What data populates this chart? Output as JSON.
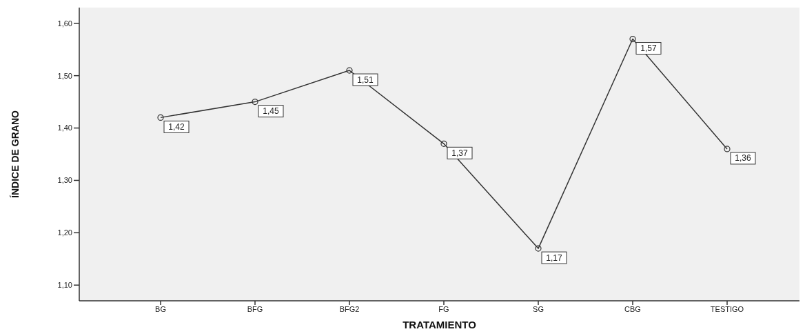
{
  "chart_data": {
    "type": "line",
    "xlabel": "TRATAMIENTO",
    "ylabel": "ÍNDICE DE GRANO",
    "categories": [
      "BG",
      "BFG",
      "BFG2",
      "FG",
      "SG",
      "CBG",
      "TESTIGO"
    ],
    "series": [
      {
        "color": "#333333",
        "values": [
          1.42,
          1.45,
          1.51,
          1.37,
          1.17,
          1.57,
          1.36
        ],
        "value_labels": [
          "1,42",
          "1,45",
          "1,51",
          "1,37",
          "1,17",
          "1,57",
          "1,36"
        ]
      }
    ],
    "ylim": [
      1.07,
      1.63
    ],
    "yticks": [
      {
        "value": 1.1,
        "label": "1,10"
      },
      {
        "value": 1.2,
        "label": "1,20"
      },
      {
        "value": 1.3,
        "label": "1,30"
      },
      {
        "value": 1.4,
        "label": "1,40"
      },
      {
        "value": 1.5,
        "label": "1,50"
      },
      {
        "value": 1.6,
        "label": "1,60"
      }
    ],
    "grid": false,
    "marker": "circle",
    "line_style": "solid",
    "legend": false
  }
}
